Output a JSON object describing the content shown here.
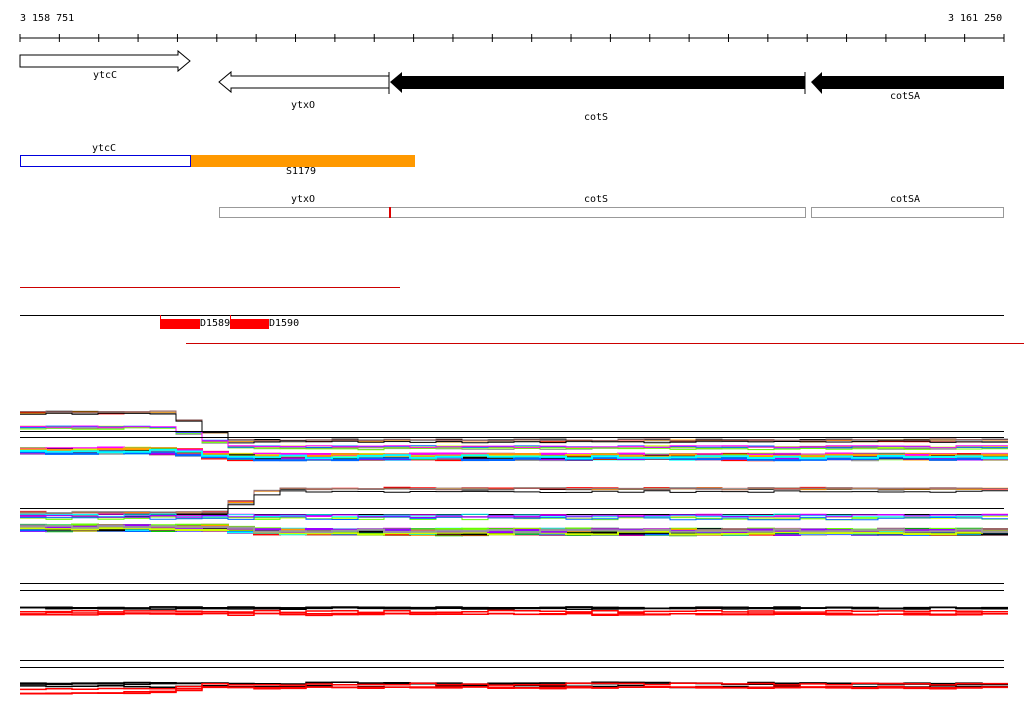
{
  "ruler": {
    "start_label": "3 158 751",
    "end_label": "3 161 250"
  },
  "genes_track": [
    {
      "name": "ytcC",
      "strand": "+",
      "style": "outline"
    },
    {
      "name": "ytxO",
      "strand": "-",
      "style": "outline"
    },
    {
      "name": "cotS",
      "strand": "-",
      "style": "filled"
    },
    {
      "name": "cotSA",
      "strand": "-",
      "style": "filled"
    }
  ],
  "operon_track": {
    "gene_label": "ytcC",
    "segment_label": "S1179",
    "gene_color": "#0000dd",
    "segment_color": "#ff9900"
  },
  "transcript_track": [
    {
      "name": "ytxO"
    },
    {
      "name": "cotS"
    },
    {
      "name": "cotSA"
    }
  ],
  "transcript_color": "#dd0000",
  "features_track": [
    {
      "name": "D1589"
    },
    {
      "name": "D1590"
    }
  ],
  "feature_color": "#ff0000",
  "profile_palette": [
    "#000000",
    "#ff0000",
    "#ff9900",
    "#999999",
    "#996666",
    "#ccff00",
    "#66ff00",
    "#0066ff",
    "#ff00ff",
    "#00ffff",
    "#9900ff",
    "#00cc00"
  ]
}
